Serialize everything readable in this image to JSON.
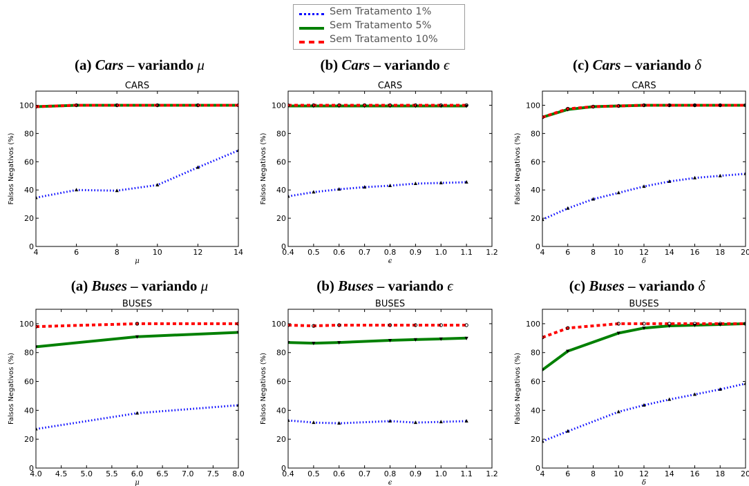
{
  "legend": {
    "items": [
      {
        "label": "Sem Tratamento 1%",
        "color": "#0000ff",
        "style": "dotted"
      },
      {
        "label": "Sem Tratamento 5%",
        "color": "#008000",
        "style": "solid"
      },
      {
        "label": "Sem Tratamento 10%",
        "color": "#ff0000",
        "style": "dashed"
      }
    ]
  },
  "captions": [
    {
      "prefix": "(a) ",
      "dataset": "Cars",
      "mid": " – variando ",
      "symbol": "μ"
    },
    {
      "prefix": "(b) ",
      "dataset": "Cars",
      "mid": " – variando ",
      "symbol": "ϵ"
    },
    {
      "prefix": "(c) ",
      "dataset": "Cars",
      "mid": " – variando ",
      "symbol": "δ"
    },
    {
      "prefix": "(a) ",
      "dataset": "Buses",
      "mid": " – variando ",
      "symbol": "μ"
    },
    {
      "prefix": "(b) ",
      "dataset": "Buses",
      "mid": " – variando ",
      "symbol": "ϵ"
    },
    {
      "prefix": "(c) ",
      "dataset": "Buses",
      "mid": " – variando ",
      "symbol": "δ"
    }
  ],
  "chart_data": [
    {
      "type": "line",
      "title": "CARS",
      "xlabel": "μ",
      "ylabel": "Falsos Negativos (%)",
      "xlim": [
        4,
        14
      ],
      "ylim": [
        0,
        110
      ],
      "xticks": [
        4,
        6,
        8,
        10,
        12,
        14
      ],
      "xtick_labels": [
        "4",
        "6",
        "8",
        "10",
        "12",
        "14"
      ],
      "yticks": [
        0,
        20,
        40,
        60,
        80,
        100
      ],
      "ytick_labels": [
        "0",
        "20",
        "40",
        "60",
        "80",
        "100"
      ],
      "x": [
        4,
        6,
        8,
        10,
        12,
        14
      ],
      "series": [
        {
          "name": "Sem Tratamento 1%",
          "values": [
            34.5,
            40,
            39.5,
            43.5,
            56,
            68
          ]
        },
        {
          "name": "Sem Tratamento 5%",
          "values": [
            99,
            100,
            100,
            100,
            100,
            100
          ]
        },
        {
          "name": "Sem Tratamento 10%",
          "values": [
            99,
            100,
            100,
            100,
            100,
            100
          ]
        }
      ]
    },
    {
      "type": "line",
      "title": "CARS",
      "xlabel": "ϵ",
      "ylabel": "Falsos Negativos (%)",
      "xlim": [
        0.4,
        1.2
      ],
      "ylim": [
        0,
        110
      ],
      "xticks": [
        0.4,
        0.5,
        0.6,
        0.7,
        0.8,
        0.9,
        1.0,
        1.1,
        1.2
      ],
      "xtick_labels": [
        "0.4",
        "0.5",
        "0.6",
        "0.7",
        "0.8",
        "0.9",
        "1.0",
        "1.1",
        "1.2"
      ],
      "yticks": [
        0,
        20,
        40,
        60,
        80,
        100
      ],
      "ytick_labels": [
        "0",
        "20",
        "40",
        "60",
        "80",
        "100"
      ],
      "x": [
        0.4,
        0.5,
        0.6,
        0.7,
        0.8,
        0.9,
        1.0,
        1.1
      ],
      "series": [
        {
          "name": "Sem Tratamento 1%",
          "values": [
            35.5,
            38.5,
            40.5,
            42,
            43,
            44.5,
            45,
            45.5
          ]
        },
        {
          "name": "Sem Tratamento 5%",
          "values": [
            99.5,
            99.5,
            99.5,
            99.5,
            99.5,
            99.5,
            99.5,
            99.5
          ]
        },
        {
          "name": "Sem Tratamento 10%",
          "values": [
            100,
            100,
            100,
            100,
            100,
            100,
            100,
            100
          ]
        }
      ]
    },
    {
      "type": "line",
      "title": "CARS",
      "xlabel": "δ",
      "ylabel": "Falsos Negativos (%)",
      "xlim": [
        4,
        20
      ],
      "ylim": [
        0,
        110
      ],
      "xticks": [
        4,
        6,
        8,
        10,
        12,
        14,
        16,
        18,
        20
      ],
      "xtick_labels": [
        "4",
        "6",
        "8",
        "10",
        "12",
        "14",
        "16",
        "18",
        "20"
      ],
      "yticks": [
        0,
        20,
        40,
        60,
        80,
        100
      ],
      "ytick_labels": [
        "0",
        "20",
        "40",
        "60",
        "80",
        "100"
      ],
      "x": [
        4,
        6,
        8,
        10,
        12,
        14,
        16,
        18,
        20
      ],
      "series": [
        {
          "name": "Sem Tratamento 1%",
          "values": [
            19,
            27,
            33.5,
            38,
            42.5,
            46,
            48.5,
            50,
            51.5
          ]
        },
        {
          "name": "Sem Tratamento 5%",
          "values": [
            91.5,
            97,
            99,
            99.5,
            100,
            100,
            100,
            100,
            100
          ]
        },
        {
          "name": "Sem Tratamento 10%",
          "values": [
            91.5,
            97.5,
            99,
            99.5,
            100,
            100,
            100,
            100,
            100
          ]
        }
      ]
    },
    {
      "type": "line",
      "title": "BUSES",
      "xlabel": "μ",
      "ylabel": "Falsos Negativos (%)",
      "xlim": [
        4,
        8
      ],
      "ylim": [
        0,
        110
      ],
      "xticks": [
        4,
        4.5,
        5,
        5.5,
        6,
        6.5,
        7,
        7.5,
        8
      ],
      "xtick_labels": [
        "4.0",
        "4.5",
        "5.0",
        "5.5",
        "6.0",
        "6.5",
        "7.0",
        "7.5",
        "8.0"
      ],
      "yticks": [
        0,
        20,
        40,
        60,
        80,
        100
      ],
      "ytick_labels": [
        "0",
        "20",
        "40",
        "60",
        "80",
        "100"
      ],
      "x": [
        4,
        6,
        8
      ],
      "series": [
        {
          "name": "Sem Tratamento 1%",
          "values": [
            27,
            38,
            43.5
          ]
        },
        {
          "name": "Sem Tratamento 5%",
          "values": [
            84,
            91,
            94
          ]
        },
        {
          "name": "Sem Tratamento 10%",
          "values": [
            98,
            100,
            100
          ]
        }
      ]
    },
    {
      "type": "line",
      "title": "BUSES",
      "xlabel": "ϵ",
      "ylabel": "Falsos Negativos (%)",
      "xlim": [
        0.4,
        1.2
      ],
      "ylim": [
        0,
        110
      ],
      "xticks": [
        0.4,
        0.5,
        0.6,
        0.7,
        0.8,
        0.9,
        1.0,
        1.1,
        1.2
      ],
      "xtick_labels": [
        "0.4",
        "0.5",
        "0.6",
        "0.7",
        "0.8",
        "0.9",
        "1.0",
        "1.1",
        "1.2"
      ],
      "yticks": [
        0,
        20,
        40,
        60,
        80,
        100
      ],
      "ytick_labels": [
        "0",
        "20",
        "40",
        "60",
        "80",
        "100"
      ],
      "x": [
        0.4,
        0.5,
        0.6,
        0.8,
        0.9,
        1.0,
        1.1
      ],
      "series": [
        {
          "name": "Sem Tratamento 1%",
          "values": [
            33,
            31.5,
            31,
            32.5,
            31.5,
            32,
            32.5
          ]
        },
        {
          "name": "Sem Tratamento 5%",
          "values": [
            87,
            86.5,
            87,
            88.5,
            89,
            89.5,
            90
          ]
        },
        {
          "name": "Sem Tratamento 10%",
          "values": [
            99,
            98.5,
            99,
            99,
            99,
            99,
            99
          ]
        }
      ]
    },
    {
      "type": "line",
      "title": "BUSES",
      "xlabel": "δ",
      "ylabel": "Falsos Negativos (%)",
      "xlim": [
        4,
        20
      ],
      "ylim": [
        0,
        110
      ],
      "xticks": [
        4,
        6,
        8,
        10,
        12,
        14,
        16,
        18,
        20
      ],
      "xtick_labels": [
        "4",
        "6",
        "8",
        "10",
        "12",
        "14",
        "16",
        "18",
        "20"
      ],
      "yticks": [
        0,
        20,
        40,
        60,
        80,
        100
      ],
      "ytick_labels": [
        "0",
        "20",
        "40",
        "60",
        "80",
        "100"
      ],
      "x": [
        4,
        6,
        10,
        12,
        14,
        16,
        18,
        20
      ],
      "series": [
        {
          "name": "Sem Tratamento 1%",
          "values": [
            18.5,
            25.5,
            39,
            43.5,
            47.5,
            51,
            54.5,
            58.5
          ]
        },
        {
          "name": "Sem Tratamento 5%",
          "values": [
            68,
            81,
            93.5,
            97,
            98.5,
            99,
            99.5,
            100
          ]
        },
        {
          "name": "Sem Tratamento 10%",
          "values": [
            90.5,
            97,
            100,
            100,
            100,
            100,
            100,
            100
          ]
        }
      ]
    }
  ]
}
